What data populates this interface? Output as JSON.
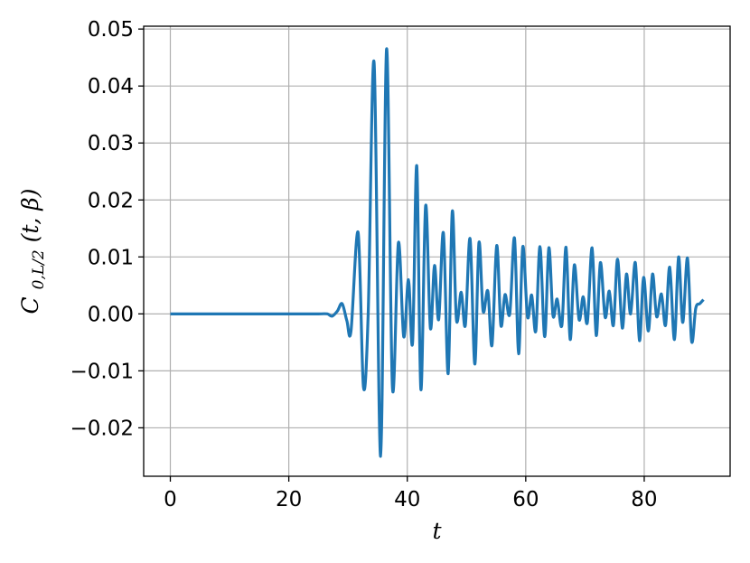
{
  "chart_data": {
    "type": "line",
    "xlabel": "t",
    "ylabel_main": "C",
    "ylabel_sub": "0,L/2",
    "ylabel_args": "(t, β)",
    "xlim": [
      -4.5,
      94.5
    ],
    "ylim": [
      -0.0285,
      0.0505
    ],
    "xticks": [
      0,
      20,
      40,
      60,
      80
    ],
    "xtick_labels": [
      "0",
      "20",
      "40",
      "60",
      "80"
    ],
    "yticks": [
      -0.02,
      -0.01,
      0.0,
      0.01,
      0.02,
      0.03,
      0.04,
      0.05
    ],
    "ytick_labels": [
      "−0.02",
      "−0.01",
      "0.00",
      "0.01",
      "0.02",
      "0.03",
      "0.04",
      "0.05"
    ],
    "grid": true,
    "series": [
      {
        "color": "#1f77b4",
        "x": [
          0,
          5,
          10,
          15,
          20,
          25,
          26.5,
          27.3,
          28.2,
          29,
          29.8,
          30.5,
          31.7,
          32.6,
          33.4,
          34.4,
          35.5,
          36.5,
          37.5,
          38.5,
          39.4,
          40.2,
          40.9,
          41.6,
          42.3,
          43.1,
          43.9,
          44.6,
          45.3,
          46.1,
          46.9,
          47.6,
          48.3,
          49.1,
          49.8,
          50.6,
          51.4,
          52.1,
          52.8,
          53.6,
          54.3,
          55.1,
          55.8,
          56.5,
          57.3,
          58.1,
          58.8,
          59.5,
          60.3,
          61,
          61.7,
          62.4,
          63.2,
          63.9,
          64.6,
          65.3,
          66.1,
          66.8,
          67.5,
          68.2,
          69,
          69.7,
          70.4,
          71.2,
          71.9,
          72.6,
          73.4,
          74.1,
          74.8,
          75.5,
          76.3,
          77,
          77.7,
          78.5,
          79.2,
          79.9,
          80.7,
          81.4,
          82.1,
          82.9,
          83.6,
          84.3,
          85.1,
          85.8,
          86.5,
          87.3,
          88,
          88.7,
          89.4,
          90
        ],
        "y": [
          0,
          0,
          0,
          0,
          0,
          0,
          0,
          -0.0004,
          0.0005,
          0.0018,
          -0.0012,
          -0.003,
          0.0143,
          -0.0128,
          0.0,
          0.0441,
          -0.025,
          0.0465,
          -0.013,
          0.0125,
          -0.004,
          0.006,
          -0.005,
          0.026,
          -0.0133,
          0.019,
          -0.0025,
          0.0085,
          -0.001,
          0.0142,
          -0.0105,
          0.018,
          -0.001,
          0.0038,
          -0.002,
          0.0132,
          -0.0088,
          0.0125,
          0.0005,
          0.004,
          -0.0055,
          0.012,
          -0.002,
          0.0034,
          0.0,
          0.0133,
          -0.007,
          0.0118,
          -0.0005,
          0.0033,
          -0.003,
          0.0118,
          -0.004,
          0.0116,
          -0.0003,
          0.0026,
          -0.002,
          0.0117,
          -0.0045,
          0.0086,
          -0.001,
          0.003,
          -0.0015,
          0.0116,
          -0.0038,
          0.009,
          -0.0006,
          0.004,
          -0.002,
          0.0096,
          -0.0025,
          0.007,
          0.0,
          0.009,
          -0.0047,
          0.0064,
          -0.003,
          0.007,
          -0.0005,
          0.0035,
          -0.002,
          0.0082,
          -0.0045,
          0.01,
          -0.0015,
          0.0098,
          -0.0048,
          0.001,
          0.0018,
          0.0025
        ]
      }
    ]
  }
}
